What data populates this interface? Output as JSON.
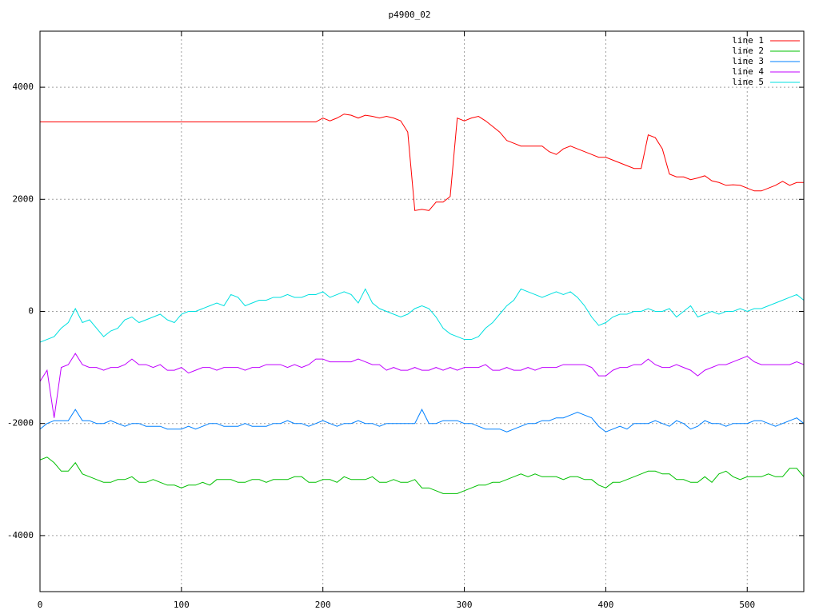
{
  "chart_data": {
    "type": "line",
    "title": "p4900_02",
    "xlim": [
      0,
      540
    ],
    "ylim": [
      -5000,
      5000
    ],
    "xticks": [
      0,
      100,
      200,
      300,
      400,
      500
    ],
    "yticks": [
      -4000,
      -2000,
      0,
      2000,
      4000
    ],
    "grid": true,
    "legend": "top right",
    "x": [
      0,
      5,
      10,
      15,
      20,
      25,
      30,
      35,
      40,
      45,
      50,
      55,
      60,
      65,
      70,
      75,
      80,
      85,
      90,
      95,
      100,
      105,
      110,
      115,
      120,
      125,
      130,
      135,
      140,
      145,
      150,
      155,
      160,
      165,
      170,
      175,
      180,
      185,
      190,
      195,
      200,
      205,
      210,
      215,
      220,
      225,
      230,
      235,
      240,
      245,
      250,
      255,
      260,
      265,
      270,
      275,
      280,
      285,
      290,
      295,
      300,
      305,
      310,
      315,
      320,
      325,
      330,
      335,
      340,
      345,
      350,
      355,
      360,
      365,
      370,
      375,
      380,
      385,
      390,
      395,
      400,
      405,
      410,
      415,
      420,
      425,
      430,
      435,
      440,
      445,
      450,
      455,
      460,
      465,
      470,
      475,
      480,
      485,
      490,
      495,
      500,
      505,
      510,
      515,
      520,
      525,
      530,
      535,
      540
    ],
    "series": [
      {
        "name": "line 1",
        "color": "#ff0000",
        "values": [
          3380,
          3380,
          3380,
          3380,
          3380,
          3380,
          3380,
          3380,
          3380,
          3380,
          3380,
          3380,
          3380,
          3380,
          3380,
          3380,
          3380,
          3380,
          3380,
          3380,
          3380,
          3380,
          3380,
          3380,
          3380,
          3380,
          3380,
          3380,
          3380,
          3380,
          3380,
          3380,
          3380,
          3380,
          3380,
          3380,
          3380,
          3380,
          3380,
          3380,
          3450,
          3400,
          3450,
          3520,
          3500,
          3450,
          3500,
          3480,
          3450,
          3480,
          3450,
          3400,
          3200,
          1800,
          1820,
          1800,
          1950,
          1950,
          2050,
          3450,
          3400,
          3450,
          3480,
          3400,
          3300,
          3200,
          3050,
          3000,
          2950,
          2950,
          2950,
          2950,
          2850,
          2800,
          2900,
          2950,
          2900,
          2850,
          2800,
          2750,
          2750,
          2700,
          2650,
          2600,
          2550,
          2550,
          3150,
          3100,
          2900,
          2450,
          2400,
          2400,
          2350,
          2380,
          2420,
          2330,
          2300,
          2250,
          2260,
          2250,
          2200,
          2150,
          2150,
          2200,
          2250,
          2320,
          2250,
          2300,
          2300
        ]
      },
      {
        "name": "line 2",
        "color": "#00c000",
        "values": [
          -2650,
          -2600,
          -2700,
          -2850,
          -2850,
          -2700,
          -2900,
          -2950,
          -3000,
          -3050,
          -3050,
          -3000,
          -3000,
          -2950,
          -3050,
          -3050,
          -3000,
          -3050,
          -3100,
          -3100,
          -3150,
          -3100,
          -3100,
          -3050,
          -3100,
          -3000,
          -3000,
          -3000,
          -3050,
          -3050,
          -3000,
          -3000,
          -3050,
          -3000,
          -3000,
          -3000,
          -2950,
          -2950,
          -3050,
          -3050,
          -3000,
          -3000,
          -3050,
          -2950,
          -3000,
          -3000,
          -3000,
          -2950,
          -3050,
          -3050,
          -3000,
          -3050,
          -3050,
          -3000,
          -3150,
          -3150,
          -3200,
          -3250,
          -3250,
          -3250,
          -3200,
          -3150,
          -3100,
          -3100,
          -3050,
          -3050,
          -3000,
          -2950,
          -2900,
          -2950,
          -2900,
          -2950,
          -2950,
          -2950,
          -3000,
          -2950,
          -2950,
          -3000,
          -3000,
          -3100,
          -3150,
          -3050,
          -3050,
          -3000,
          -2950,
          -2900,
          -2850,
          -2850,
          -2900,
          -2900,
          -3000,
          -3000,
          -3050,
          -3050,
          -2950,
          -3050,
          -2900,
          -2850,
          -2950,
          -3000,
          -2950,
          -2950,
          -2950,
          -2900,
          -2950,
          -2950,
          -2800,
          -2800,
          -2950
        ]
      },
      {
        "name": "line 3",
        "color": "#0080ff",
        "values": [
          -2100,
          -2000,
          -1950,
          -1950,
          -1950,
          -1750,
          -1950,
          -1950,
          -2000,
          -2000,
          -1950,
          -2000,
          -2050,
          -2000,
          -2000,
          -2050,
          -2050,
          -2050,
          -2100,
          -2100,
          -2100,
          -2050,
          -2100,
          -2050,
          -2000,
          -2000,
          -2050,
          -2050,
          -2050,
          -2000,
          -2050,
          -2050,
          -2050,
          -2000,
          -2000,
          -1950,
          -2000,
          -2000,
          -2050,
          -2000,
          -1950,
          -2000,
          -2050,
          -2000,
          -2000,
          -1950,
          -2000,
          -2000,
          -2050,
          -2000,
          -2000,
          -2000,
          -2000,
          -2000,
          -1750,
          -2000,
          -2000,
          -1950,
          -1950,
          -1950,
          -2000,
          -2000,
          -2050,
          -2100,
          -2100,
          -2100,
          -2150,
          -2100,
          -2050,
          -2000,
          -2000,
          -1950,
          -1950,
          -1900,
          -1900,
          -1850,
          -1800,
          -1850,
          -1900,
          -2050,
          -2150,
          -2100,
          -2050,
          -2100,
          -2000,
          -2000,
          -2000,
          -1950,
          -2000,
          -2050,
          -1950,
          -2000,
          -2100,
          -2050,
          -1950,
          -2000,
          -2000,
          -2050,
          -2000,
          -2000,
          -2000,
          -1950,
          -1950,
          -2000,
          -2050,
          -2000,
          -1950,
          -1900,
          -2000
        ]
      },
      {
        "name": "line 4",
        "color": "#c000ff",
        "values": [
          -1250,
          -1050,
          -1900,
          -1000,
          -950,
          -750,
          -950,
          -1000,
          -1000,
          -1050,
          -1000,
          -1000,
          -950,
          -850,
          -950,
          -950,
          -1000,
          -950,
          -1050,
          -1050,
          -1000,
          -1100,
          -1050,
          -1000,
          -1000,
          -1050,
          -1000,
          -1000,
          -1000,
          -1050,
          -1000,
          -1000,
          -950,
          -950,
          -950,
          -1000,
          -950,
          -1000,
          -950,
          -850,
          -850,
          -900,
          -900,
          -900,
          -900,
          -850,
          -900,
          -950,
          -950,
          -1050,
          -1000,
          -1050,
          -1050,
          -1000,
          -1050,
          -1050,
          -1000,
          -1050,
          -1000,
          -1050,
          -1000,
          -1000,
          -1000,
          -950,
          -1050,
          -1050,
          -1000,
          -1050,
          -1050,
          -1000,
          -1050,
          -1000,
          -1000,
          -1000,
          -950,
          -950,
          -950,
          -950,
          -1000,
          -1150,
          -1150,
          -1050,
          -1000,
          -1000,
          -950,
          -950,
          -850,
          -950,
          -1000,
          -1000,
          -950,
          -1000,
          -1050,
          -1150,
          -1050,
          -1000,
          -950,
          -950,
          -900,
          -850,
          -800,
          -900,
          -950,
          -950,
          -950,
          -950,
          -950,
          -900,
          -950
        ]
      },
      {
        "name": "line 5",
        "color": "#00e0e0",
        "values": [
          -550,
          -500,
          -450,
          -300,
          -200,
          50,
          -200,
          -150,
          -300,
          -450,
          -350,
          -300,
          -150,
          -100,
          -200,
          -150,
          -100,
          -50,
          -150,
          -200,
          -50,
          0,
          0,
          50,
          100,
          150,
          100,
          300,
          250,
          100,
          150,
          200,
          200,
          250,
          250,
          300,
          250,
          250,
          300,
          300,
          350,
          250,
          300,
          350,
          300,
          150,
          400,
          150,
          50,
          0,
          -50,
          -100,
          -50,
          50,
          100,
          50,
          -100,
          -300,
          -400,
          -450,
          -500,
          -500,
          -450,
          -300,
          -200,
          -50,
          100,
          200,
          400,
          350,
          300,
          250,
          300,
          350,
          300,
          350,
          250,
          100,
          -100,
          -250,
          -200,
          -100,
          -50,
          -50,
          0,
          0,
          50,
          0,
          0,
          50,
          -100,
          0,
          100,
          -100,
          -50,
          0,
          -50,
          0,
          0,
          50,
          0,
          50,
          50,
          100,
          150,
          200,
          250,
          300,
          200
        ]
      }
    ]
  }
}
